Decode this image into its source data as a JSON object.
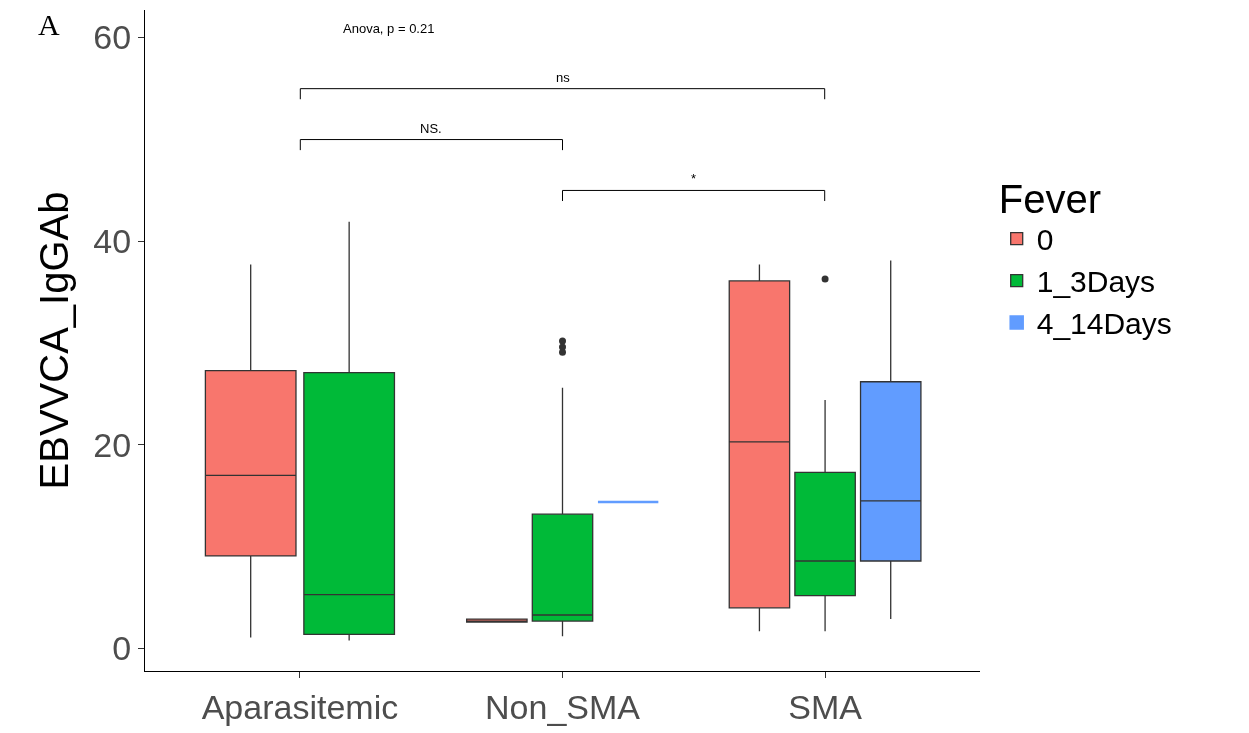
{
  "chart_data": {
    "type": "box",
    "categories": [
      "Aparasitemic",
      "Non_SMA",
      "SMA"
    ],
    "ylabel": "EBVVCA_IgGAb",
    "legend_title": "Fever",
    "legend": "right",
    "grid": false,
    "ylim": [
      -2.2,
      62.7
    ],
    "yticks": [
      0,
      20,
      40,
      60
    ],
    "annotations": [
      "A",
      "Anova, p = 0.21",
      "ns",
      "NS.",
      "*"
    ],
    "series": [
      {
        "name": "0",
        "color": "#f8766d",
        "boxes": [
          {
            "low": 1.1,
            "q1": 9.1,
            "median": 17.0,
            "q3": 27.3,
            "high": 37.7
          },
          {
            "low": 2.6,
            "q1": 2.6,
            "median": 2.7,
            "q3": 2.9,
            "high": 2.9
          },
          {
            "low": 1.7,
            "q1": 4.0,
            "median": 20.3,
            "q3": 36.1,
            "high": 37.7
          }
        ]
      },
      {
        "name": "1_3Days",
        "color": "#00ba38",
        "boxes": [
          {
            "low": 0.8,
            "q1": 1.4,
            "median": 5.3,
            "q3": 27.1,
            "high": 41.9
          },
          {
            "low": 1.2,
            "q1": 2.7,
            "median": 3.3,
            "q3": 13.2,
            "high": 25.6,
            "outliers": [
              30.2,
              29.6,
              29.1
            ]
          },
          {
            "low": 1.7,
            "q1": 5.2,
            "median": 8.6,
            "q3": 17.3,
            "high": 24.4,
            "outliers": [
              36.3
            ]
          }
        ]
      },
      {
        "name": "4_14Days",
        "color": "#619cff",
        "boxes": [
          null,
          {
            "low": 14.4,
            "q1": 14.4,
            "median": 14.4,
            "q3": 14.4,
            "high": 14.4
          },
          {
            "low": 2.9,
            "q1": 8.6,
            "median": 14.5,
            "q3": 26.2,
            "high": 38.1
          }
        ]
      }
    ]
  }
}
